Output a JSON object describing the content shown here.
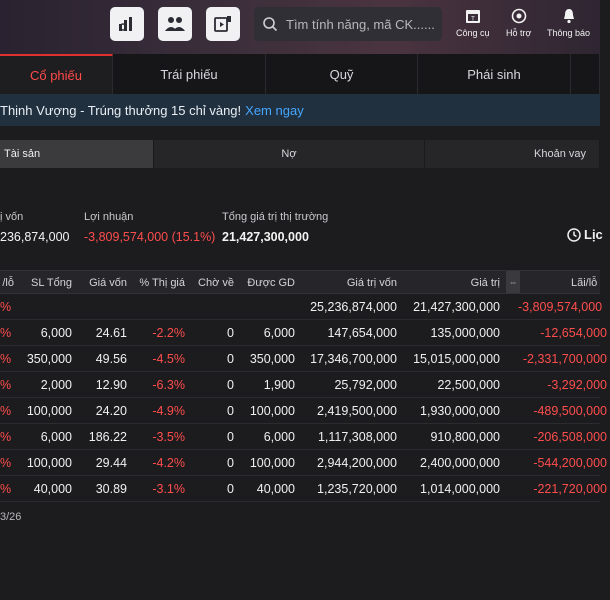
{
  "header": {
    "search_placeholder": "Tìm tính năng, mã CK......",
    "tools": [
      "chart-money-icon",
      "group-users-icon",
      "video-doc-icon"
    ],
    "items": [
      {
        "label": "Công cụ",
        "icon": "calendar-tool-icon"
      },
      {
        "label": "Hỗ trợ",
        "icon": "support-agent-icon"
      },
      {
        "label": "Thông báo",
        "icon": "bell-icon"
      }
    ]
  },
  "tabs": [
    "Cổ phiếu",
    "Trái phiếu",
    "Quỹ",
    "Phái sinh"
  ],
  "banner": {
    "text": "Thịnh Vượng - Trúng thưởng 15 chỉ vàng!",
    "link": "Xem ngay"
  },
  "subtabs": [
    "Tài sản",
    "Nợ",
    "Khoản vay"
  ],
  "summary": {
    "cost_label": "ị vốn",
    "cost_value": "236,874,000",
    "profit_label": "Lợi nhuận",
    "profit_value": "-3,809,574,000 (15.1%)",
    "market_label": "Tổng giá trị thị trường",
    "market_value": "21,427,300,000",
    "history_label": "Lịc"
  },
  "table": {
    "headers": [
      "/lỗ",
      "SL Tổng",
      "Giá vốn",
      "% Thị giá",
      "Chờ về",
      "Được GD",
      "Giá trị vốn",
      "Giá trị",
      "Lãi/lỗ"
    ],
    "total": {
      "pct": "%",
      "cost": "25,236,874,000",
      "value": "21,427,300,000",
      "pl": "-3,809,574,000"
    },
    "rows": [
      {
        "pct": "%",
        "qty": "6,000",
        "price": "24.61",
        "mkt": "-2.2%",
        "pending": "0",
        "tradable": "6,000",
        "cost": "147,654,000",
        "value": "135,000,000",
        "pl": "-12,654,000"
      },
      {
        "pct": "%",
        "qty": "350,000",
        "price": "49.56",
        "mkt": "-4.5%",
        "pending": "0",
        "tradable": "350,000",
        "cost": "17,346,700,000",
        "value": "15,015,000,000",
        "pl": "-2,331,700,000"
      },
      {
        "pct": "%",
        "qty": "2,000",
        "price": "12.90",
        "mkt": "-6.3%",
        "pending": "0",
        "tradable": "1,900",
        "cost": "25,792,000",
        "value": "22,500,000",
        "pl": "-3,292,000"
      },
      {
        "pct": "%",
        "qty": "100,000",
        "price": "24.20",
        "mkt": "-4.9%",
        "pending": "0",
        "tradable": "100,000",
        "cost": "2,419,500,000",
        "value": "1,930,000,000",
        "pl": "-489,500,000"
      },
      {
        "pct": "%",
        "qty": "6,000",
        "price": "186.22",
        "mkt": "-3.5%",
        "pending": "0",
        "tradable": "6,000",
        "cost": "1,117,308,000",
        "value": "910,800,000",
        "pl": "-206,508,000"
      },
      {
        "pct": "%",
        "qty": "100,000",
        "price": "29.44",
        "mkt": "-4.2%",
        "pending": "0",
        "tradable": "100,000",
        "cost": "2,944,200,000",
        "value": "2,400,000,000",
        "pl": "-544,200,000"
      },
      {
        "pct": "%",
        "qty": "40,000",
        "price": "30.89",
        "mkt": "-3.1%",
        "pending": "0",
        "tradable": "40,000",
        "cost": "1,235,720,000",
        "value": "1,014,000,000",
        "pl": "-221,720,000"
      }
    ]
  },
  "footnote": "3/26",
  "colors": {
    "accent": "#e0302f",
    "negative": "#ff4d4d",
    "link": "#46a6ff"
  }
}
